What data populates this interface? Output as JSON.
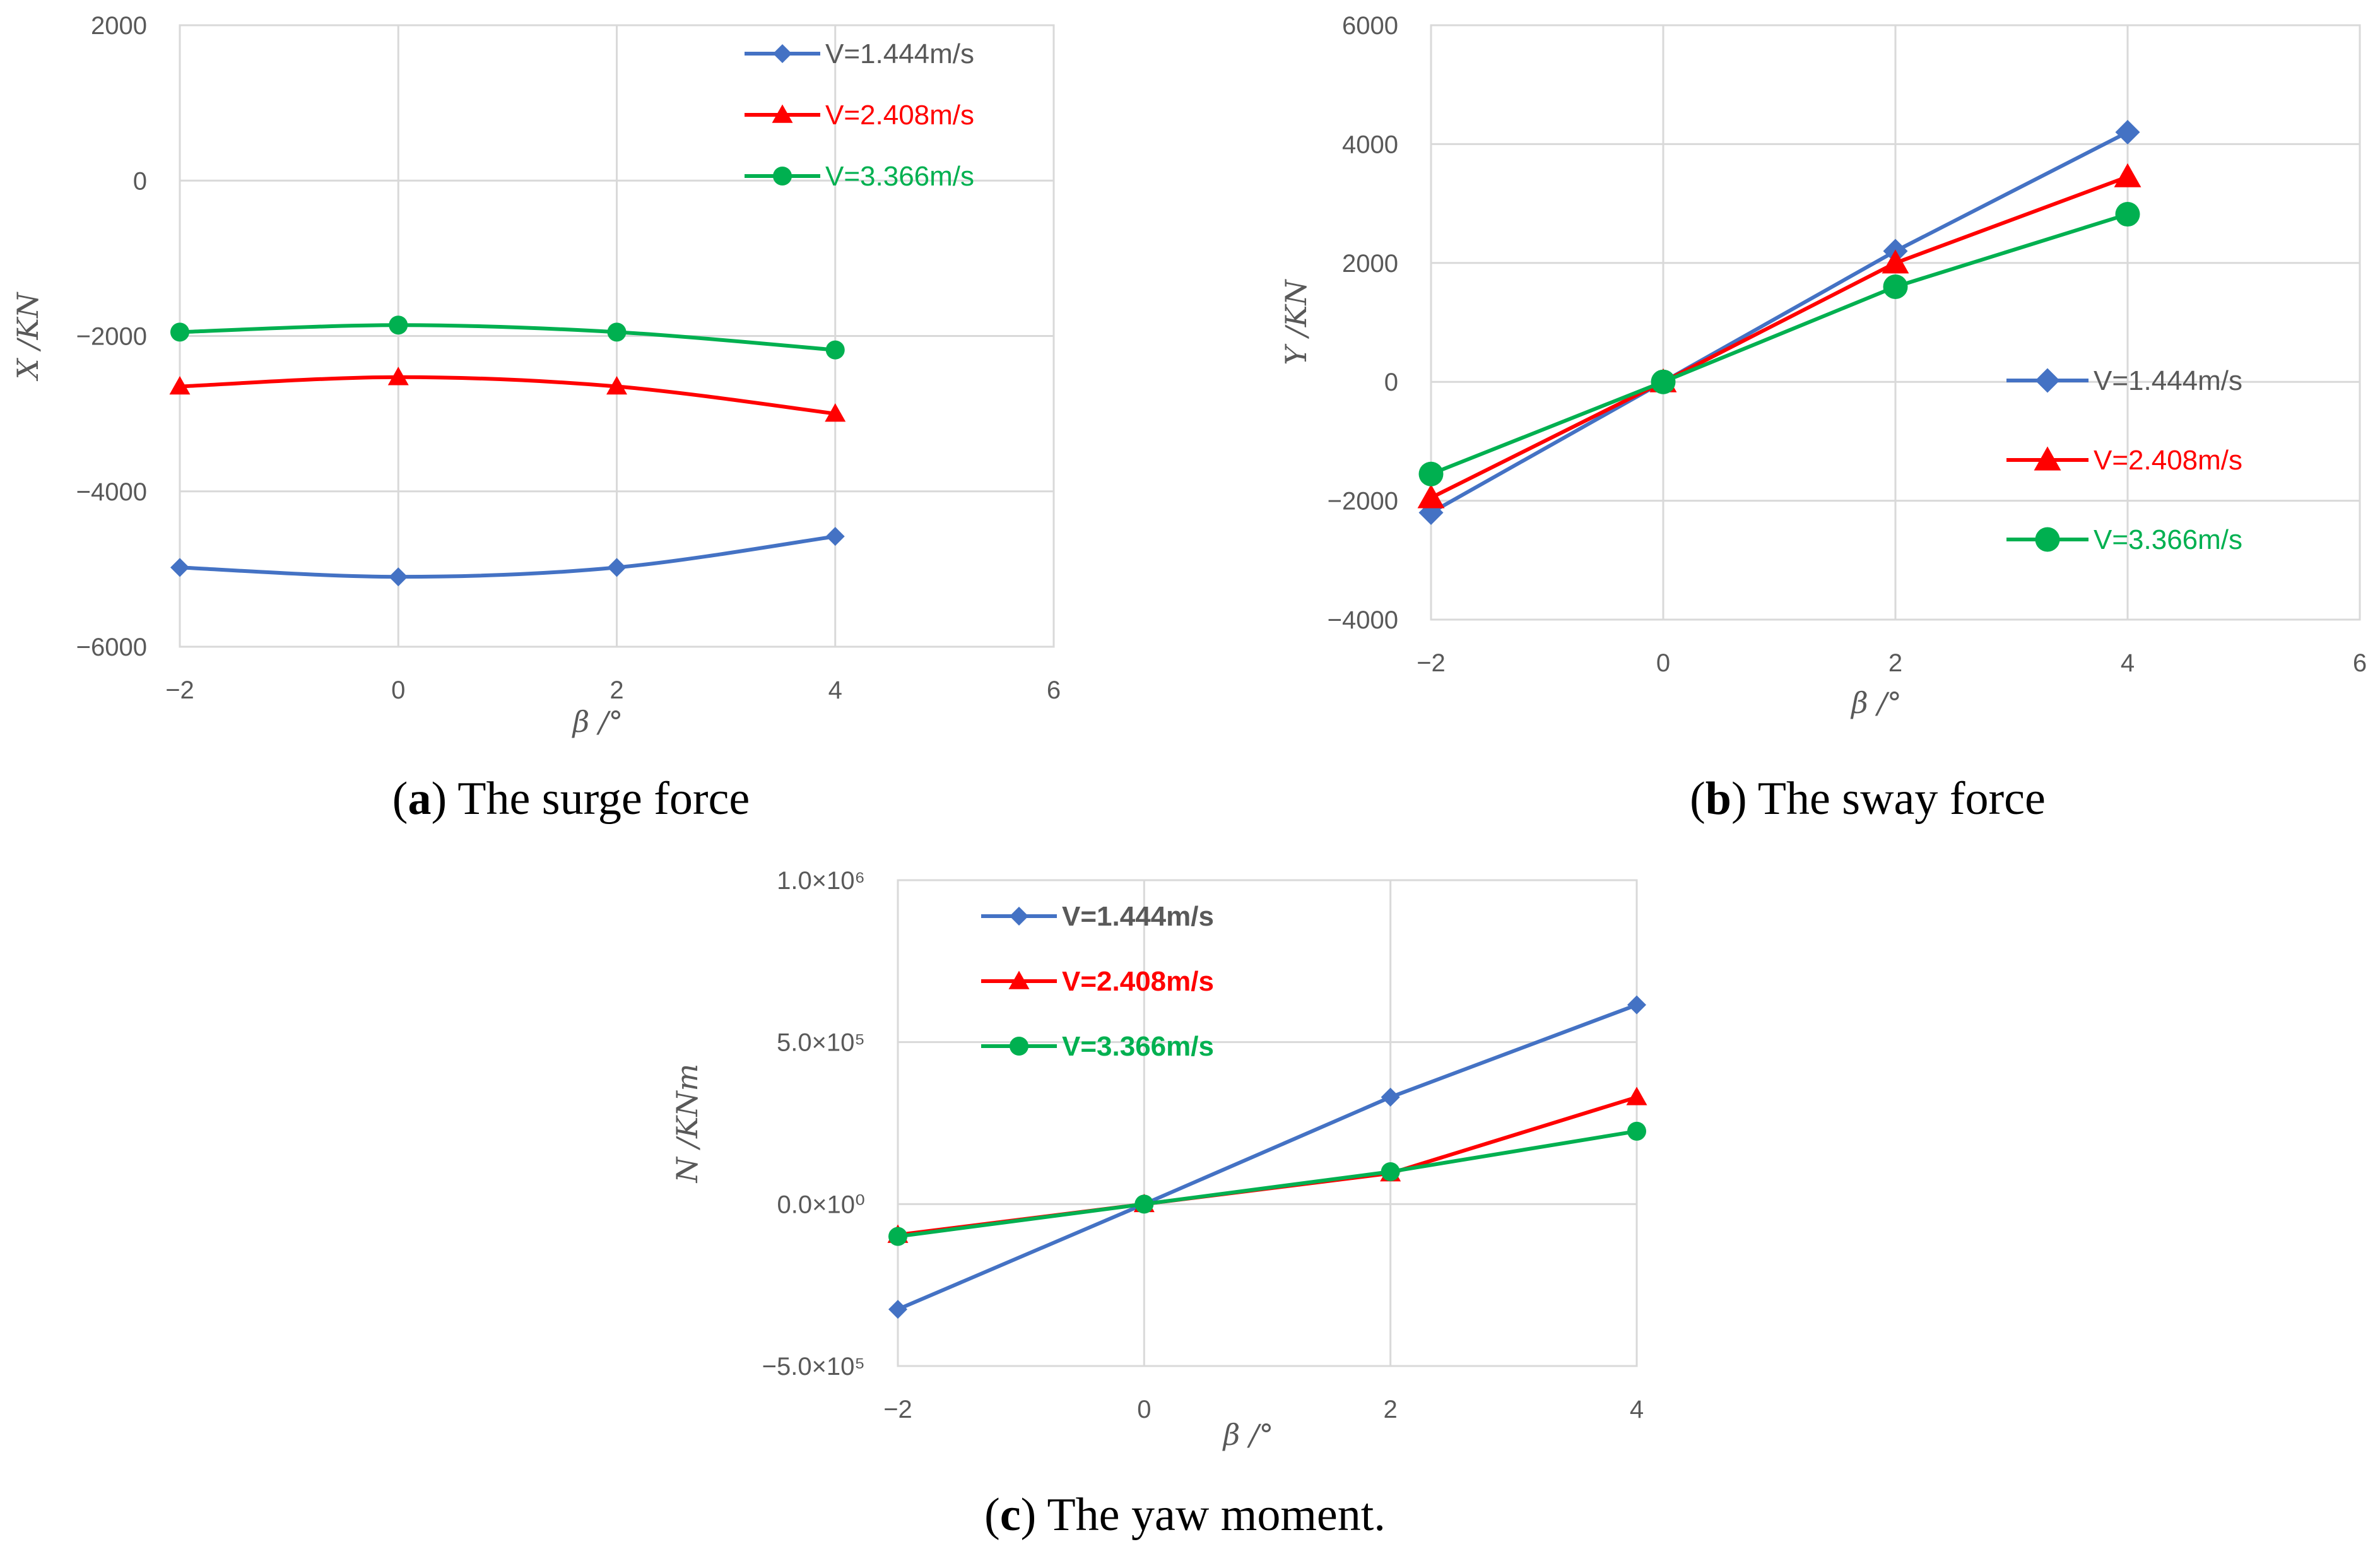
{
  "chart_data": [
    {
      "type": "line",
      "caption_letter": "a",
      "caption_text": " The surge force",
      "xlabel": "β /°",
      "ylabel": "X /KN",
      "xlim": [
        -2,
        6
      ],
      "ylim": [
        -6000,
        2000
      ],
      "xticks": [
        "−2",
        "0",
        "2",
        "4",
        "6"
      ],
      "yticks": [
        "−6000",
        "−4000",
        "−2000",
        "0",
        "2000"
      ],
      "grid": true,
      "legend_position": "top-right",
      "smooth": true,
      "x": [
        -2,
        0,
        2,
        4
      ],
      "series": [
        {
          "name": "V=1.444m/s",
          "color": "#4472C4",
          "marker": "diamond",
          "values": [
            -4980,
            -5100,
            -4980,
            -4580
          ]
        },
        {
          "name": "V=2.408m/s",
          "color": "#FF0000",
          "marker": "triangle",
          "values": [
            -2650,
            -2530,
            -2650,
            -3000
          ]
        },
        {
          "name": "V=3.366m/s",
          "color": "#00B050",
          "marker": "circle",
          "values": [
            -1950,
            -1860,
            -1950,
            -2180
          ]
        }
      ]
    },
    {
      "type": "line",
      "caption_letter": "b",
      "caption_text": " The sway force",
      "xlabel": "β /°",
      "ylabel": "Y /KN",
      "xlim": [
        -2,
        6
      ],
      "ylim": [
        -4000,
        6000
      ],
      "xticks": [
        "−2",
        "0",
        "2",
        "4",
        "6"
      ],
      "yticks": [
        "−4000",
        "−2000",
        "0",
        "2000",
        "4000",
        "6000"
      ],
      "grid": true,
      "legend_position": "right",
      "smooth": false,
      "x": [
        -2,
        0,
        2,
        4
      ],
      "series": [
        {
          "name": "V=1.444m/s",
          "color": "#4472C4",
          "marker": "diamond",
          "values": [
            -2200,
            0,
            2200,
            4200
          ]
        },
        {
          "name": "V=2.408m/s",
          "color": "#FF0000",
          "marker": "triangle",
          "values": [
            -1950,
            0,
            2000,
            3450
          ]
        },
        {
          "name": "V=3.366m/s",
          "color": "#00B050",
          "marker": "circle",
          "values": [
            -1550,
            0,
            1600,
            2820
          ]
        }
      ]
    },
    {
      "type": "line",
      "caption_letter": "c",
      "caption_text": " The yaw moment.",
      "xlabel": "β /°",
      "ylabel": "N /KNm",
      "xlim": [
        -2,
        4
      ],
      "ylim": [
        -500000,
        1000000
      ],
      "xticks": [
        "−2",
        "0",
        "2",
        "4"
      ],
      "yticks": [
        "−5.0×10⁵",
        "0.0×10⁰",
        "5.0×10⁵",
        "1.0×10⁶"
      ],
      "grid": true,
      "legend_position": "top-left",
      "smooth": false,
      "x": [
        -2,
        0,
        2,
        4
      ],
      "series": [
        {
          "name": "V=1.444m/s",
          "color": "#4472C4",
          "marker": "diamond",
          "values": [
            -325000,
            0,
            330000,
            615000
          ]
        },
        {
          "name": "V=2.408m/s",
          "color": "#FF0000",
          "marker": "triangle",
          "values": [
            -95000,
            0,
            95000,
            330000
          ]
        },
        {
          "name": "V=3.366m/s",
          "color": "#00B050",
          "marker": "circle",
          "values": [
            -100000,
            0,
            100000,
            225000
          ]
        }
      ]
    }
  ]
}
